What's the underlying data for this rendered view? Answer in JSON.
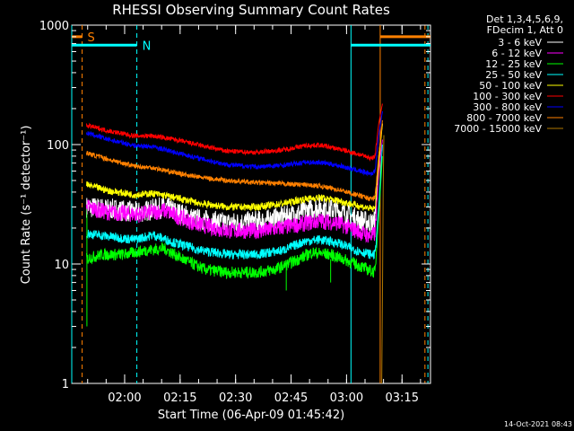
{
  "chart_data": {
    "type": "line",
    "title": "RHESSI Observing Summary Count Rates",
    "xlabel": "Start Time (06-Apr-09 01:45:42)",
    "ylabel": "Count Rate (s⁻¹ detector⁻¹)",
    "yscale": "log",
    "ylim": [
      1,
      1000
    ],
    "x_unit": "minutes since 01:45:42",
    "xlim": [
      0,
      97
    ],
    "x_ticks": [
      {
        "label": "02:00",
        "x": 14.3
      },
      {
        "label": "02:15",
        "x": 29.3
      },
      {
        "label": "02:30",
        "x": 44.3
      },
      {
        "label": "02:45",
        "x": 59.3
      },
      {
        "label": "03:00",
        "x": 74.3
      },
      {
        "label": "03:15",
        "x": 89.3
      }
    ],
    "y_ticks": [
      {
        "label": "1",
        "y": 1
      },
      {
        "label": "10",
        "y": 10
      },
      {
        "label": "100",
        "y": 100
      },
      {
        "label": "1000",
        "y": 1000
      }
    ],
    "legend": {
      "placement": "right",
      "header_lines": [
        "Det 1,3,4,5,6,9,",
        "FDecim 1, Att 0"
      ]
    },
    "series": [
      {
        "name": "3 - 6 keV",
        "color": "#ffffff",
        "noise": 0.09,
        "points": [
          [
            4,
            30
          ],
          [
            10,
            29
          ],
          [
            18,
            27
          ],
          [
            25,
            30
          ],
          [
            33,
            24
          ],
          [
            42,
            22
          ],
          [
            52,
            23
          ],
          [
            60,
            26
          ],
          [
            67,
            30
          ],
          [
            72,
            28
          ],
          [
            77,
            24
          ],
          [
            81,
            22
          ],
          [
            82,
            23
          ],
          [
            83,
            80
          ],
          [
            84,
            150
          ]
        ]
      },
      {
        "name": "6 - 12 keV",
        "color": "#ff00ff",
        "noise": 0.07,
        "points": [
          [
            4,
            30
          ],
          [
            10,
            27
          ],
          [
            18,
            26
          ],
          [
            25,
            28
          ],
          [
            33,
            22
          ],
          [
            42,
            19
          ],
          [
            52,
            19
          ],
          [
            60,
            21
          ],
          [
            67,
            23
          ],
          [
            72,
            22
          ],
          [
            77,
            19
          ],
          [
            81,
            17
          ],
          [
            82,
            18
          ],
          [
            83,
            60
          ],
          [
            84,
            110
          ]
        ]
      },
      {
        "name": "12 - 25 keV",
        "color": "#00ff00",
        "noise": 0.05,
        "points": [
          [
            4,
            11
          ],
          [
            8,
            12
          ],
          [
            14,
            12
          ],
          [
            20,
            13
          ],
          [
            25,
            13.5
          ],
          [
            30,
            11
          ],
          [
            36,
            9
          ],
          [
            42,
            8.5
          ],
          [
            50,
            8.5
          ],
          [
            55,
            9
          ],
          [
            60,
            10.5
          ],
          [
            65,
            12.5
          ],
          [
            70,
            12
          ],
          [
            75,
            10.5
          ],
          [
            80,
            9
          ],
          [
            82,
            8.5
          ],
          [
            83,
            25
          ],
          [
            84,
            80
          ]
        ]
      },
      {
        "name": "25 - 50 keV",
        "color": "#00ffff",
        "noise": 0.04,
        "points": [
          [
            4,
            18
          ],
          [
            10,
            17
          ],
          [
            17,
            16
          ],
          [
            22,
            17.5
          ],
          [
            28,
            15
          ],
          [
            35,
            13
          ],
          [
            42,
            12
          ],
          [
            50,
            12
          ],
          [
            57,
            13
          ],
          [
            63,
            15.5
          ],
          [
            67,
            16
          ],
          [
            72,
            15
          ],
          [
            77,
            13
          ],
          [
            81,
            12
          ],
          [
            82,
            12
          ],
          [
            83,
            30
          ],
          [
            84,
            100
          ]
        ]
      },
      {
        "name": "50 - 100 keV",
        "color": "#ffff00",
        "noise": 0.03,
        "points": [
          [
            4,
            46
          ],
          [
            10,
            41
          ],
          [
            17,
            38
          ],
          [
            22,
            39
          ],
          [
            28,
            36
          ],
          [
            35,
            32
          ],
          [
            42,
            30
          ],
          [
            50,
            30
          ],
          [
            57,
            32
          ],
          [
            63,
            35
          ],
          [
            67,
            36
          ],
          [
            72,
            34
          ],
          [
            77,
            31
          ],
          [
            81,
            29
          ],
          [
            82,
            29
          ],
          [
            83,
            70
          ],
          [
            84,
            150
          ]
        ]
      },
      {
        "name": "100 - 300 keV",
        "color": "#ff0000",
        "noise": 0.02,
        "points": [
          [
            4,
            145
          ],
          [
            10,
            130
          ],
          [
            17,
            118
          ],
          [
            22,
            118
          ],
          [
            28,
            110
          ],
          [
            35,
            98
          ],
          [
            42,
            88
          ],
          [
            50,
            86
          ],
          [
            57,
            90
          ],
          [
            63,
            98
          ],
          [
            67,
            99
          ],
          [
            72,
            92
          ],
          [
            77,
            84
          ],
          [
            81,
            77
          ],
          [
            82,
            80
          ],
          [
            83,
            150
          ],
          [
            84,
            220
          ]
        ]
      },
      {
        "name": "300 - 800 keV",
        "color": "#0000ff",
        "noise": 0.02,
        "points": [
          [
            4,
            125
          ],
          [
            10,
            110
          ],
          [
            17,
            98
          ],
          [
            22,
            96
          ],
          [
            28,
            86
          ],
          [
            35,
            76
          ],
          [
            42,
            68
          ],
          [
            50,
            65
          ],
          [
            57,
            67
          ],
          [
            63,
            71
          ],
          [
            67,
            71
          ],
          [
            72,
            67
          ],
          [
            77,
            61
          ],
          [
            81,
            57
          ],
          [
            82,
            60
          ],
          [
            83,
            120
          ],
          [
            84,
            190
          ]
        ]
      },
      {
        "name": "800 - 7000 keV",
        "color": "#ff8000",
        "noise": 0.02,
        "points": [
          [
            4,
            85
          ],
          [
            10,
            75
          ],
          [
            17,
            66
          ],
          [
            22,
            64
          ],
          [
            28,
            58
          ],
          [
            35,
            53
          ],
          [
            42,
            50
          ],
          [
            50,
            48
          ],
          [
            57,
            47
          ],
          [
            63,
            46
          ],
          [
            67,
            45
          ],
          [
            72,
            42
          ],
          [
            77,
            38
          ],
          [
            81,
            35
          ],
          [
            82,
            36
          ],
          [
            83,
            80
          ],
          [
            84,
            160
          ]
        ]
      },
      {
        "name": "7000 - 15000 keV",
        "color": "#b07800",
        "noise": 0.0,
        "points": [
          [
            83.8,
            1
          ],
          [
            84,
            5
          ],
          [
            84.2,
            40
          ],
          [
            84.4,
            120
          ]
        ]
      }
    ],
    "annotations": [
      {
        "label": "S",
        "color": "#ff8000",
        "x_start": 0,
        "x_end": 2.8,
        "y": 800
      },
      {
        "label": "N",
        "color": "#00ffff",
        "x_start": 0,
        "x_end": 17.6,
        "y": 680
      }
    ],
    "right_bars": [
      {
        "color": "#00ffff",
        "x_start": 75.5,
        "x_end": 97,
        "y": 680
      },
      {
        "color": "#ff8000",
        "x_start": 83.4,
        "x_end": 97,
        "y": 800
      }
    ],
    "vlines": [
      {
        "x": 0,
        "color": "#00ffff",
        "dashed": false
      },
      {
        "x": 2.8,
        "color": "#ff8000",
        "dashed": true
      },
      {
        "x": 17.6,
        "color": "#00ffff",
        "dashed": true
      },
      {
        "x": 75.5,
        "color": "#00ffff",
        "dashed": false
      },
      {
        "x": 83.4,
        "color": "#ff8000",
        "dashed": false
      },
      {
        "x": 95.5,
        "color": "#ff8000",
        "dashed": true
      },
      {
        "x": 96.3,
        "color": "#00ffff",
        "dashed": true
      }
    ],
    "grid": false
  },
  "footer": {
    "timestamp": "14-Oct-2021 08:43"
  }
}
